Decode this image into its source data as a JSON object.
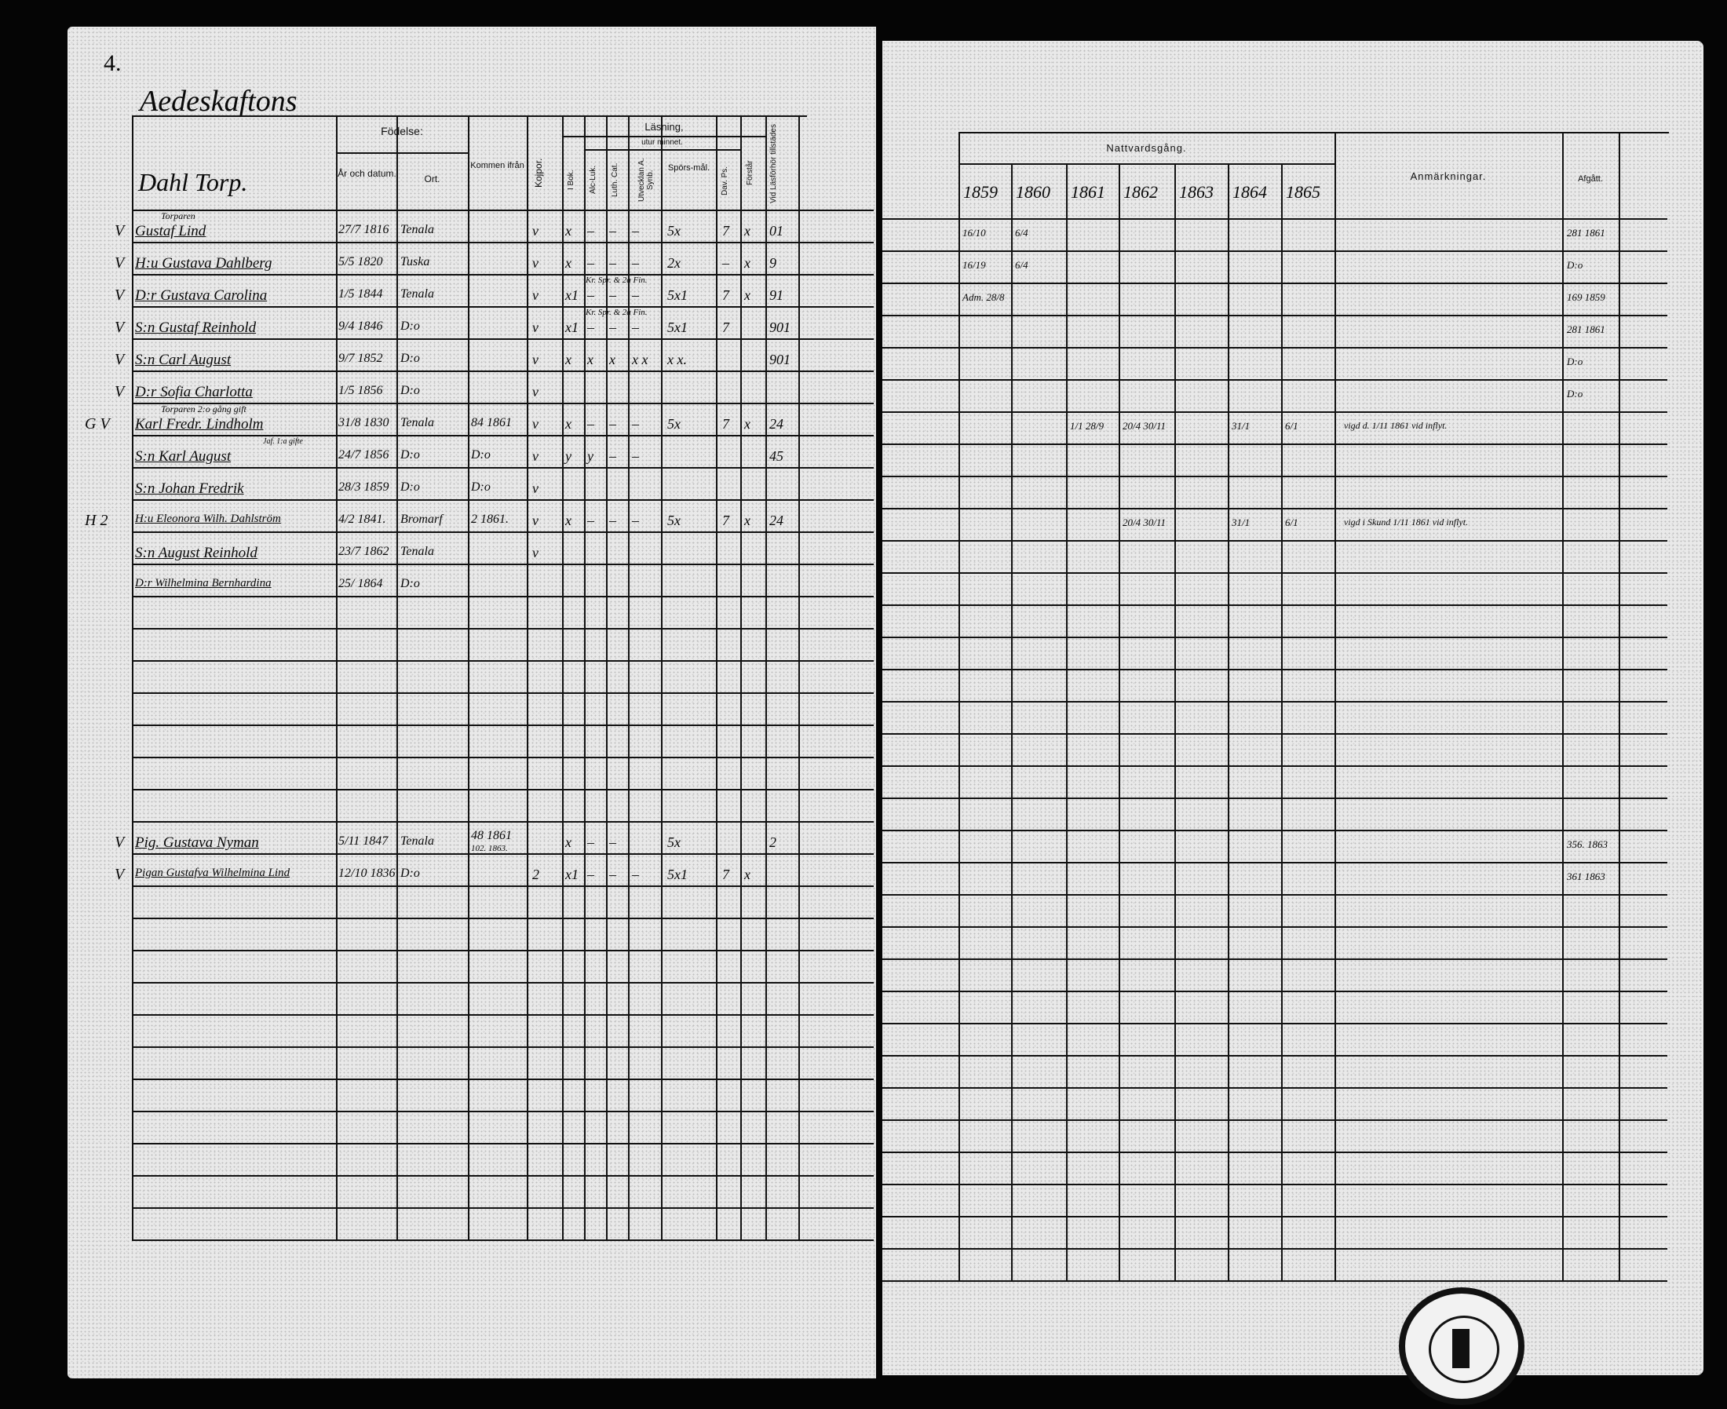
{
  "left": {
    "page_number": "4.",
    "parish_title": "Aedeskaftons",
    "farm_title": "Dahl Torp.",
    "headers": {
      "fodelse": "Födelse:",
      "ar_datum": "År och datum.",
      "ort": "Ort.",
      "kommen_ifran": "Kommen ifrån",
      "kopor": "Kojpor.",
      "lasning": "Läsning,",
      "utur_minnet": "utur minnet.",
      "i_bok": "I Bok.",
      "alc_luk": "Alc-Luk.",
      "luth_cat": "Luth. Cat.",
      "utveckl": "Utvecklan A. Synb.",
      "sporsmal": "Spörs-mål.",
      "dav_ps": "Dav. Ps.",
      "forstar": "Förstår",
      "vid_lasforhor": "Vid Läsförhör tillstädes"
    },
    "rows": [
      {
        "mark": "V",
        "pre": "Torparen",
        "name": "Gustaf Lind",
        "date": "27/7 1816",
        "place": "Tenala",
        "from": "",
        "kopor": "v",
        "ibok": "x",
        "alc": "–",
        "luth": "–",
        "utv": "–",
        "spor": "5x",
        "dav": "7",
        "forst": "x",
        "vid": "01"
      },
      {
        "mark": "V",
        "name": "H:u Gustava Dahlberg",
        "date": "5/5 1820",
        "place": "Tuska",
        "from": "",
        "kopor": "v",
        "ibok": "x",
        "alc": "–",
        "luth": "–",
        "utv": "–",
        "spor": "2x",
        "dav": "–",
        "forst": "x",
        "vid": "9"
      },
      {
        "mark": "V",
        "name": "D:r Gustava Carolina",
        "date": "1/5 1844",
        "place": "Tenala",
        "from": "",
        "note": "Kr. Spr. & 2a Fin.",
        "kopor": "v",
        "ibok": "x1",
        "alc": "–",
        "luth": "–",
        "utv": "–",
        "spor": "5x1",
        "dav": "7",
        "forst": "x",
        "vid": "91"
      },
      {
        "mark": "V",
        "name": "S:n Gustaf Reinhold",
        "date": "9/4 1846",
        "place": "D:o",
        "from": "",
        "note": "Kr. Spr. & 2a Fin.",
        "kopor": "v",
        "ibok": "x1",
        "alc": "–",
        "luth": "–",
        "utv": "–",
        "spor": "5x1",
        "dav": "7",
        "forst": "",
        "vid": "901"
      },
      {
        "mark": "V",
        "name": "S:n Carl August",
        "date": "9/7 1852",
        "place": "D:o",
        "from": "",
        "kopor": "v",
        "ibok": "x",
        "alc": "x",
        "luth": "x",
        "utv": "x x",
        "spor": "x x.",
        "dav": "",
        "forst": "",
        "vid": "901"
      },
      {
        "mark": "V",
        "name": "D:r Sofia Charlotta",
        "date": "1/5 1856",
        "place": "D:o",
        "from": "",
        "kopor": "v",
        "ibok": "",
        "alc": "",
        "luth": "",
        "utv": "",
        "spor": "",
        "dav": "",
        "forst": "",
        "vid": ""
      },
      {
        "mark": "G V",
        "pre": "Torparen 2:o gång gift",
        "name": "Karl Fredr. Lindholm",
        "date": "31/8 1830",
        "place": "Tenala",
        "from": "84 1861",
        "kopor": "v",
        "ibok": "x",
        "alc": "–",
        "luth": "–",
        "utv": "–",
        "spor": "5x",
        "dav": "7",
        "forst": "x",
        "vid": "24"
      },
      {
        "mark": "",
        "name": "S:n Karl August",
        "side": "Jaf. 1:a gifte",
        "date": "24/7 1856",
        "place": "D:o",
        "from": "D:o",
        "kopor": "v",
        "ibok": "y",
        "alc": "y",
        "luth": "–",
        "utv": "–",
        "spor": "",
        "dav": "",
        "forst": "",
        "vid": "45"
      },
      {
        "mark": "",
        "name": "S:n Johan Fredrik",
        "date": "28/3 1859",
        "place": "D:o",
        "from": "D:o",
        "kopor": "v",
        "ibok": "",
        "alc": "",
        "luth": "",
        "utv": "",
        "spor": "",
        "dav": "",
        "forst": "",
        "vid": ""
      },
      {
        "mark": "H 2",
        "name": "H:u Eleonora Wilh. Dahlström",
        "date": "4/2 1841.",
        "place": "Bromarf",
        "from": "2 1861.",
        "kopor": "v",
        "ibok": "x",
        "alc": "–",
        "luth": "–",
        "utv": "–",
        "spor": "5x",
        "dav": "7",
        "forst": "x",
        "vid": "24"
      },
      {
        "mark": "",
        "name": "S:n August Reinhold",
        "date": "23/7 1862",
        "place": "Tenala",
        "from": "",
        "kopor": "v",
        "ibok": "",
        "alc": "",
        "luth": "",
        "utv": "",
        "spor": "",
        "dav": "",
        "forst": "",
        "vid": ""
      },
      {
        "mark": "",
        "name": "D:r Wilhelmina Bernhardina",
        "date": "25/ 1864",
        "place": "D:o",
        "from": "",
        "kopor": "",
        "ibok": "",
        "alc": "",
        "luth": "",
        "utv": "",
        "spor": "",
        "dav": "",
        "forst": "",
        "vid": ""
      },
      {},
      {},
      {},
      {},
      {},
      {},
      {},
      {
        "mark": "V",
        "name": "Pig. Gustava Nyman",
        "date": "5/11 1847",
        "place": "Tenala",
        "from": "48 1861",
        "from2": "102. 1863.",
        "kopor": "",
        "ibok": "x",
        "alc": "–",
        "luth": "–",
        "utv": "",
        "spor": "5x",
        "dav": "",
        "forst": "",
        "vid": "2"
      },
      {
        "mark": "V",
        "name": "Pigan Gustafva Wilhelmina Lind",
        "date": "12/10 1836",
        "place": "D:o",
        "from": "",
        "kopor": "2",
        "ibok": "x1",
        "alc": "–",
        "luth": "–",
        "utv": "–",
        "spor": "5x1",
        "dav": "7",
        "forst": "x",
        "vid": ""
      }
    ]
  },
  "right": {
    "headers": {
      "nattvardsgang": "Nattvardsgång.",
      "years": [
        "1859",
        "1860",
        "1861",
        "1862",
        "1863",
        "1864",
        "1865"
      ],
      "anmarkningar": "Anmärkningar.",
      "afgatt": "Afgått."
    },
    "rows": [
      {
        "y": [
          "16/10",
          "6/4",
          "",
          "",
          "",
          "",
          ""
        ],
        "anm": "",
        "afg": "281 1861"
      },
      {
        "y": [
          "16/19",
          "6/4",
          "",
          "",
          "",
          "",
          ""
        ],
        "anm": "",
        "afg": "D:o"
      },
      {
        "y": [
          "Adm. 28/8",
          "",
          "",
          "",
          "",
          "",
          ""
        ],
        "anm": "",
        "afg": "169 1859"
      },
      {
        "y": [
          "",
          "",
          "",
          "",
          "",
          "",
          ""
        ],
        "anm": "",
        "afg": "281 1861"
      },
      {
        "y": [
          "",
          "",
          "",
          "",
          "",
          "",
          ""
        ],
        "anm": "",
        "afg": "D:o"
      },
      {
        "y": [
          "",
          "",
          "",
          "",
          "",
          "",
          ""
        ],
        "anm": "",
        "afg": "D:o"
      },
      {
        "y": [
          "",
          "",
          "1/1 28/9",
          "20/4 30/11",
          "",
          "31/1",
          "6/1"
        ],
        "anm": "vigd d. 1/11 1861 vid inflyt.",
        "afg": ""
      },
      {},
      {},
      {
        "y": [
          "",
          "",
          "",
          "20/4 30/11",
          "",
          "31/1",
          "6/1"
        ],
        "anm": "vigd i Skund 1/11 1861 vid inflyt.",
        "afg": ""
      },
      {},
      {},
      {},
      {},
      {},
      {},
      {},
      {},
      {},
      {
        "y": [
          "",
          "",
          "",
          "",
          "",
          "",
          ""
        ],
        "anm": "",
        "afg": "356. 1863"
      },
      {
        "y": [
          "",
          "",
          "",
          "",
          "",
          "",
          ""
        ],
        "anm": "",
        "afg": "361 1863"
      }
    ]
  }
}
